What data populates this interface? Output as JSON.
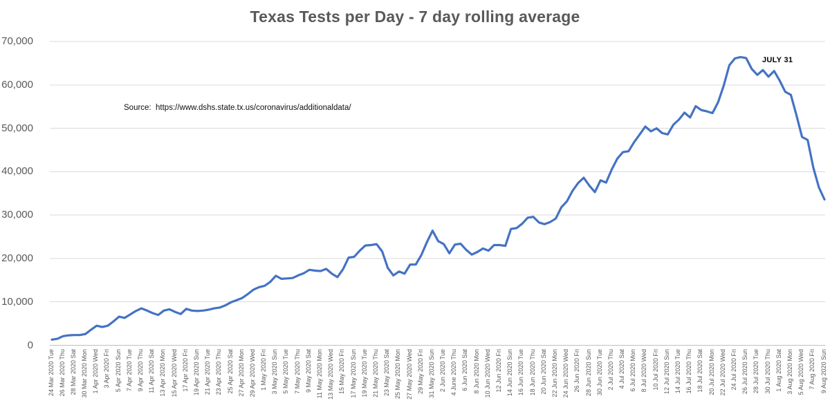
{
  "chart": {
    "title": "Texas Tests per Day - 7 day rolling average",
    "source_note": "Source:  https://www.dshs.state.tx.us/coronavirus/additionaldata/",
    "annotation": "JULY 31"
  },
  "chart_data": {
    "type": "line",
    "title": "Texas Tests per Day - 7 day rolling average",
    "xlabel": "",
    "ylabel": "",
    "ylim": [
      0,
      70000
    ],
    "grid": true,
    "legend": false,
    "line_color": "#4472C4",
    "grid_color": "#D9D9D9",
    "axis_color": "#BFBFBF",
    "y_ticks": [
      0,
      10000,
      20000,
      30000,
      40000,
      50000,
      60000,
      70000
    ],
    "y_tick_labels": [
      "0",
      "10,000",
      "20,000",
      "30,000",
      "40,000",
      "50,000",
      "60,000",
      "70,000"
    ],
    "x_tick_labels": [
      "24 Mar 2020 Tue",
      "26 Mar 2020 Thu",
      "28 Mar 2020 Sat",
      "30 Mar 2020 Mon",
      "1 Apr 2020 Wed",
      "3 Apr 2020 Fri",
      "5 Apr 2020 Sun",
      "7 Apr 2020 Tue",
      "9 Apr 2020 Thu",
      "11 Apr 2020 Sat",
      "13 Apr 2020 Mon",
      "15 Apr 2020 Wed",
      "17 Apr 2020 Fri",
      "19 Apr 2020 Sun",
      "21 Apr 2020 Tue",
      "23 Apr 2020 Thu",
      "25 Apr 2020 Sat",
      "27 Apr 2020 Mon",
      "29 Apr 2020 Wed",
      "1 May 2020 Fri",
      "3 May 2020 Sun",
      "5 May 2020 Tue",
      "7 May 2020 Thu",
      "9 May 2020 Sat",
      "11 May 2020 Mon",
      "13 May 2020 Wed",
      "15 May 2020 Fri",
      "17 May 2020 Sun",
      "19 May 2020 Tue",
      "21 May 2020 Thu",
      "23 May 2020 Sat",
      "25 May 2020 Mon",
      "27 May 2020 Wed",
      "29 May 2020 Fri",
      "31 May 2020 Sun",
      "2 Jun 2020 Tue",
      "4 June 2020 Thu",
      "6 Jun 2020 Sat",
      "8 Jun 2020 Mon",
      "10 Jun 2020 Wed",
      "12 Jun 2020 Fri",
      "14 Jun 2020 Sun",
      "16 Jun 2020 Tue",
      "18 Jun 2020 Thu",
      "20 Jun 2020 Sat",
      "22 Jun 2020 Mon",
      "24 Jun 2020 Wed",
      "26 Jun 2020 Fri",
      "28 Jun 2020 Sun",
      "30 Jun 2020 Tue",
      "2 Jul 2020 Thu",
      "4 Jul 2020 Sat",
      "6 Jul 2020 Mon",
      "8 Jul 2020 Wed",
      "10 Jul 2020 Fri",
      "12 Jul 2020 Sun",
      "14 Jul 2020 Tue",
      "16 Jul 2020 Thu",
      "18 Jul 2020 Sat",
      "20 Jul 2020 Mon",
      "22 Jul 2020 Wed",
      "24 Jul 2020 Fri",
      "26 Jul 2020 Sun",
      "28 Jul 2020 Tue",
      "30 Jul 2020 Thu",
      "1 Aug 2020 Sat",
      "3 Aug 2020 Mon",
      "5 Aug 2020 Wed",
      "7 Aug 2020 Fri",
      "9 Aug 2020 Sun"
    ],
    "annotation": {
      "text": "JULY 31",
      "date": "2020-07-31",
      "value": 63200
    },
    "series_name": "Tests per day (7-day rolling average)",
    "dates": [
      "2020-03-24",
      "2020-03-25",
      "2020-03-26",
      "2020-03-27",
      "2020-03-28",
      "2020-03-29",
      "2020-03-30",
      "2020-03-31",
      "2020-04-01",
      "2020-04-02",
      "2020-04-03",
      "2020-04-04",
      "2020-04-05",
      "2020-04-06",
      "2020-04-07",
      "2020-04-08",
      "2020-04-09",
      "2020-04-10",
      "2020-04-11",
      "2020-04-12",
      "2020-04-13",
      "2020-04-14",
      "2020-04-15",
      "2020-04-16",
      "2020-04-17",
      "2020-04-18",
      "2020-04-19",
      "2020-04-20",
      "2020-04-21",
      "2020-04-22",
      "2020-04-23",
      "2020-04-24",
      "2020-04-25",
      "2020-04-26",
      "2020-04-27",
      "2020-04-28",
      "2020-04-29",
      "2020-04-30",
      "2020-05-01",
      "2020-05-02",
      "2020-05-03",
      "2020-05-04",
      "2020-05-05",
      "2020-05-06",
      "2020-05-07",
      "2020-05-08",
      "2020-05-09",
      "2020-05-10",
      "2020-05-11",
      "2020-05-12",
      "2020-05-13",
      "2020-05-14",
      "2020-05-15",
      "2020-05-16",
      "2020-05-17",
      "2020-05-18",
      "2020-05-19",
      "2020-05-20",
      "2020-05-21",
      "2020-05-22",
      "2020-05-23",
      "2020-05-24",
      "2020-05-25",
      "2020-05-26",
      "2020-05-27",
      "2020-05-28",
      "2020-05-29",
      "2020-05-30",
      "2020-05-31",
      "2020-06-01",
      "2020-06-02",
      "2020-06-03",
      "2020-06-04",
      "2020-06-05",
      "2020-06-06",
      "2020-06-07",
      "2020-06-08",
      "2020-06-09",
      "2020-06-10",
      "2020-06-11",
      "2020-06-12",
      "2020-06-13",
      "2020-06-14",
      "2020-06-15",
      "2020-06-16",
      "2020-06-17",
      "2020-06-18",
      "2020-06-19",
      "2020-06-20",
      "2020-06-21",
      "2020-06-22",
      "2020-06-23",
      "2020-06-24",
      "2020-06-25",
      "2020-06-26",
      "2020-06-27",
      "2020-06-28",
      "2020-06-29",
      "2020-06-30",
      "2020-07-01",
      "2020-07-02",
      "2020-07-03",
      "2020-07-04",
      "2020-07-05",
      "2020-07-06",
      "2020-07-07",
      "2020-07-08",
      "2020-07-09",
      "2020-07-10",
      "2020-07-11",
      "2020-07-12",
      "2020-07-13",
      "2020-07-14",
      "2020-07-15",
      "2020-07-16",
      "2020-07-17",
      "2020-07-18",
      "2020-07-19",
      "2020-07-20",
      "2020-07-21",
      "2020-07-22",
      "2020-07-23",
      "2020-07-24",
      "2020-07-25",
      "2020-07-26",
      "2020-07-27",
      "2020-07-28",
      "2020-07-29",
      "2020-07-30",
      "2020-07-31",
      "2020-08-01",
      "2020-08-02",
      "2020-08-03",
      "2020-08-04",
      "2020-08-05",
      "2020-08-06",
      "2020-08-07",
      "2020-08-08",
      "2020-08-09"
    ],
    "values": [
      1300,
      1500,
      2100,
      2300,
      2350,
      2350,
      2600,
      3600,
      4500,
      4200,
      4500,
      5500,
      6600,
      6300,
      7100,
      7900,
      8500,
      8000,
      7400,
      7000,
      8000,
      8300,
      7700,
      7200,
      8400,
      8000,
      7900,
      8000,
      8200,
      8500,
      8700,
      9200,
      9900,
      10400,
      10900,
      11800,
      12800,
      13400,
      13700,
      14600,
      16000,
      15300,
      15400,
      15500,
      16100,
      16600,
      17400,
      17200,
      17100,
      17600,
      16500,
      15700,
      17500,
      20200,
      20400,
      21800,
      23000,
      23100,
      23300,
      21600,
      17800,
      16100,
      17000,
      16500,
      18600,
      18600,
      20800,
      23800,
      26400,
      24000,
      23300,
      21200,
      23200,
      23400,
      22000,
      20900,
      21500,
      22300,
      21800,
      23100,
      23100,
      22900,
      26800,
      27000,
      28000,
      29400,
      29600,
      28300,
      27900,
      28400,
      29200,
      31800,
      33200,
      35600,
      37400,
      38600,
      36800,
      35300,
      38000,
      37500,
      40500,
      43000,
      44500,
      44700,
      46800,
      48600,
      50400,
      49300,
      50000,
      48900,
      48600,
      50800,
      52000,
      53600,
      52500,
      55100,
      54200,
      53900,
      53500,
      56000,
      59800,
      64500,
      66100,
      66400,
      66200,
      63700,
      62300,
      63400,
      61900,
      63200,
      61000,
      58400,
      57700,
      53000,
      48000,
      47300,
      41000,
      36400,
      33600
    ]
  }
}
